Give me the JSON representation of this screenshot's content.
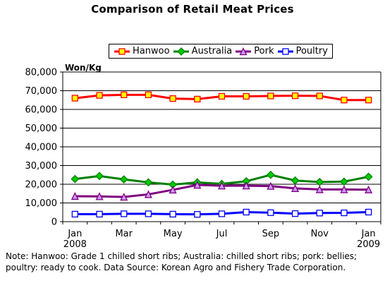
{
  "chart_data": {
    "type": "line",
    "title": "Comparison of Retail Meat Prices",
    "ylabel": "Won/Kg",
    "xlabel": "",
    "ylim": [
      0,
      80000
    ],
    "yticks": [
      0,
      10000,
      20000,
      30000,
      40000,
      50000,
      60000,
      70000,
      80000
    ],
    "ytick_labels": [
      "0",
      "10,000",
      "20,000",
      "30,000",
      "40,000",
      "50,000",
      "60,000",
      "70,000",
      "80,000"
    ],
    "x": [
      "Jan 2008",
      "Feb 2008",
      "Mar 2008",
      "Apr 2008",
      "May 2008",
      "Jun 2008",
      "Jul 2008",
      "Aug 2008",
      "Sep 2008",
      "Oct 2008",
      "Nov 2008",
      "Dec 2008",
      "Jan 2009"
    ],
    "xtick_labels": [
      {
        "index": 0,
        "line1": "Jan",
        "line2": "2008"
      },
      {
        "index": 2,
        "line1": "Mar",
        "line2": ""
      },
      {
        "index": 4,
        "line1": "May",
        "line2": ""
      },
      {
        "index": 6,
        "line1": "Jul",
        "line2": ""
      },
      {
        "index": 8,
        "line1": "Sep",
        "line2": ""
      },
      {
        "index": 10,
        "line1": "Nov",
        "line2": ""
      },
      {
        "index": 12,
        "line1": "Jan",
        "line2": "2009"
      }
    ],
    "grid": true,
    "legend_position": "top",
    "series": [
      {
        "name": "Hanwoo",
        "color": "#ff0000",
        "marker": "square",
        "marker_fill": "#ffff00",
        "values": [
          66000,
          67500,
          67800,
          67800,
          65800,
          65500,
          67000,
          67000,
          67200,
          67300,
          67200,
          65000,
          65000
        ]
      },
      {
        "name": "Australia",
        "color": "#008000",
        "marker": "diamond",
        "marker_fill": "#00cc00",
        "values": [
          22800,
          24400,
          22600,
          21000,
          19800,
          21000,
          20200,
          21600,
          25000,
          22000,
          21200,
          21400,
          24000
        ]
      },
      {
        "name": "Pork",
        "color": "#800080",
        "marker": "triangle",
        "marker_fill": "#cc99ff",
        "values": [
          13600,
          13500,
          13200,
          14600,
          17000,
          19600,
          19200,
          19200,
          19000,
          17800,
          17200,
          17200,
          17100
        ]
      },
      {
        "name": "Poultry",
        "color": "#0000ff",
        "marker": "square",
        "marker_fill": "#ffffff",
        "values": [
          4000,
          4000,
          4200,
          4200,
          4000,
          3900,
          4200,
          5100,
          4800,
          4300,
          4600,
          4700,
          5100
        ]
      }
    ]
  },
  "note": "Note: Hanwoo: Grade 1 chilled short ribs; Australia: chilled short ribs; pork: bellies; poultry: ready to cook.  Data Source: Korean Agro and Fishery Trade Corporation."
}
